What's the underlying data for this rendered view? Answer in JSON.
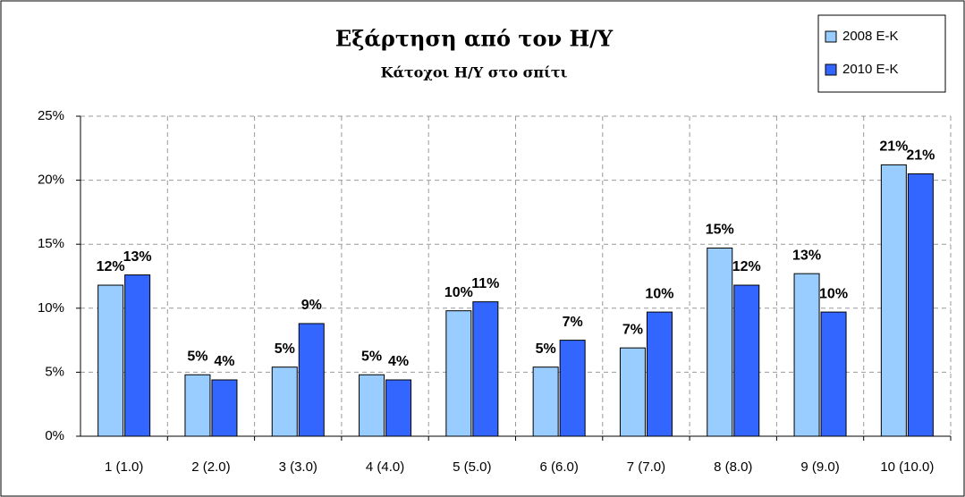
{
  "chart_data": {
    "type": "bar",
    "title": "Εξάρτηση από τον Η/Υ",
    "subtitle": "Κάτοχοι Η/Υ στο σπίτι",
    "categories": [
      "1 (1.0)",
      "2 (2.0)",
      "3 (3.0)",
      "4 (4.0)",
      "5 (5.0)",
      "6 (6.0)",
      "7 (7.0)",
      "8 (8.0)",
      "9 (9.0)",
      "10 (10.0)"
    ],
    "series": [
      {
        "name": "2008 E-K",
        "color": "#99ccff",
        "values": [
          11.8,
          4.8,
          5.4,
          4.8,
          9.8,
          5.4,
          6.9,
          14.7,
          12.7,
          21.2
        ],
        "value_labels": [
          "12%",
          "5%",
          "5%",
          "5%",
          "10%",
          "5%",
          "7%",
          "15%",
          "13%",
          "21%"
        ]
      },
      {
        "name": "2010 E-K",
        "color": "#3366ff",
        "values": [
          12.6,
          4.4,
          8.8,
          4.4,
          10.5,
          7.5,
          9.7,
          11.8,
          9.7,
          20.5
        ],
        "value_labels": [
          "13%",
          "4%",
          "9%",
          "4%",
          "11%",
          "7%",
          "10%",
          "12%",
          "10%",
          "21%"
        ]
      }
    ],
    "ylim": [
      0,
      25
    ],
    "yticks": [
      {
        "value": 0,
        "label": "0%"
      },
      {
        "value": 5,
        "label": "5%"
      },
      {
        "value": 10,
        "label": "10%"
      },
      {
        "value": 15,
        "label": "15%"
      },
      {
        "value": 20,
        "label": "20%"
      },
      {
        "value": 25,
        "label": "25%"
      }
    ],
    "grid": true,
    "legend": "top-right"
  }
}
